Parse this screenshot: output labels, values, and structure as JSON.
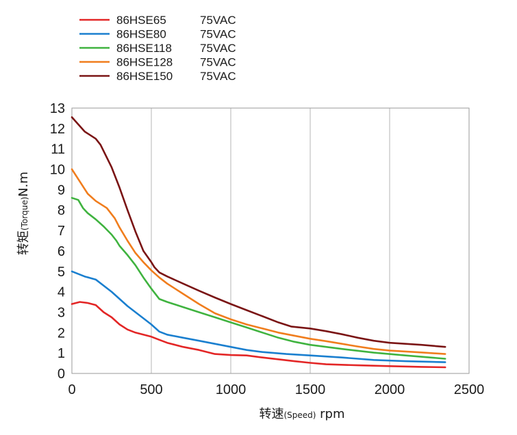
{
  "chart_data": {
    "type": "line",
    "xlabel": {
      "main": "转速",
      "small": "(Speed)",
      "unit": " rpm"
    },
    "ylabel": {
      "main": "转矩",
      "small": "(Torque)",
      "unit": "N.m"
    },
    "xlim": [
      0,
      2500
    ],
    "ylim": [
      0,
      13
    ],
    "xticks": [
      0,
      500,
      1000,
      1500,
      2000,
      2500
    ],
    "yticks": [
      0,
      1,
      2,
      3,
      4,
      5,
      6,
      7,
      8,
      9,
      10,
      11,
      12,
      13
    ],
    "grid": "vertical",
    "legend_position": "top-left",
    "series": [
      {
        "name": "86HSE65",
        "voltage": "75VAC",
        "color": "#e32626",
        "points": [
          [
            0,
            3.4
          ],
          [
            50,
            3.5
          ],
          [
            100,
            3.45
          ],
          [
            150,
            3.35
          ],
          [
            200,
            3.0
          ],
          [
            250,
            2.75
          ],
          [
            300,
            2.4
          ],
          [
            350,
            2.15
          ],
          [
            400,
            2.0
          ],
          [
            500,
            1.8
          ],
          [
            550,
            1.65
          ],
          [
            600,
            1.5
          ],
          [
            700,
            1.3
          ],
          [
            800,
            1.15
          ],
          [
            900,
            0.95
          ],
          [
            1000,
            0.9
          ],
          [
            1100,
            0.88
          ],
          [
            1200,
            0.78
          ],
          [
            1400,
            0.6
          ],
          [
            1500,
            0.52
          ],
          [
            1600,
            0.45
          ],
          [
            1800,
            0.4
          ],
          [
            2000,
            0.36
          ],
          [
            2200,
            0.32
          ],
          [
            2350,
            0.3
          ]
        ]
      },
      {
        "name": "86HSE80",
        "voltage": "75VAC",
        "color": "#1a7fcf",
        "points": [
          [
            0,
            5.0
          ],
          [
            80,
            4.75
          ],
          [
            150,
            4.6
          ],
          [
            250,
            4.0
          ],
          [
            350,
            3.3
          ],
          [
            450,
            2.7
          ],
          [
            500,
            2.4
          ],
          [
            550,
            2.05
          ],
          [
            600,
            1.9
          ],
          [
            700,
            1.75
          ],
          [
            800,
            1.6
          ],
          [
            900,
            1.45
          ],
          [
            1000,
            1.3
          ],
          [
            1100,
            1.15
          ],
          [
            1200,
            1.05
          ],
          [
            1350,
            0.95
          ],
          [
            1500,
            0.88
          ],
          [
            1700,
            0.78
          ],
          [
            1900,
            0.66
          ],
          [
            2100,
            0.6
          ],
          [
            2350,
            0.55
          ]
        ]
      },
      {
        "name": "86HSE118",
        "voltage": "75VAC",
        "color": "#3fb33f",
        "points": [
          [
            0,
            8.6
          ],
          [
            40,
            8.5
          ],
          [
            70,
            8.1
          ],
          [
            100,
            7.85
          ],
          [
            150,
            7.55
          ],
          [
            200,
            7.2
          ],
          [
            250,
            6.8
          ],
          [
            280,
            6.5
          ],
          [
            300,
            6.25
          ],
          [
            350,
            5.8
          ],
          [
            400,
            5.3
          ],
          [
            450,
            4.7
          ],
          [
            500,
            4.15
          ],
          [
            550,
            3.65
          ],
          [
            600,
            3.5
          ],
          [
            700,
            3.25
          ],
          [
            800,
            3.0
          ],
          [
            900,
            2.75
          ],
          [
            1000,
            2.5
          ],
          [
            1100,
            2.25
          ],
          [
            1200,
            2.0
          ],
          [
            1300,
            1.75
          ],
          [
            1400,
            1.55
          ],
          [
            1500,
            1.4
          ],
          [
            1700,
            1.2
          ],
          [
            1900,
            1.02
          ],
          [
            2100,
            0.88
          ],
          [
            2350,
            0.72
          ]
        ]
      },
      {
        "name": "86HSE128",
        "voltage": "75VAC",
        "color": "#f07d1d",
        "points": [
          [
            0,
            10.0
          ],
          [
            50,
            9.4
          ],
          [
            100,
            8.8
          ],
          [
            150,
            8.45
          ],
          [
            220,
            8.1
          ],
          [
            270,
            7.6
          ],
          [
            300,
            7.15
          ],
          [
            350,
            6.5
          ],
          [
            400,
            5.9
          ],
          [
            450,
            5.45
          ],
          [
            500,
            5.05
          ],
          [
            550,
            4.7
          ],
          [
            600,
            4.4
          ],
          [
            700,
            3.9
          ],
          [
            800,
            3.4
          ],
          [
            900,
            2.95
          ],
          [
            1000,
            2.65
          ],
          [
            1100,
            2.4
          ],
          [
            1200,
            2.2
          ],
          [
            1300,
            2.0
          ],
          [
            1400,
            1.85
          ],
          [
            1500,
            1.7
          ],
          [
            1600,
            1.58
          ],
          [
            1700,
            1.45
          ],
          [
            1800,
            1.32
          ],
          [
            1900,
            1.2
          ],
          [
            2000,
            1.12
          ],
          [
            2200,
            1.03
          ],
          [
            2350,
            0.95
          ]
        ]
      },
      {
        "name": "86HSE150",
        "voltage": "75VAC",
        "color": "#7a1414",
        "points": [
          [
            0,
            12.55
          ],
          [
            80,
            11.85
          ],
          [
            150,
            11.5
          ],
          [
            180,
            11.2
          ],
          [
            250,
            10.1
          ],
          [
            300,
            9.1
          ],
          [
            350,
            8.0
          ],
          [
            400,
            6.95
          ],
          [
            450,
            6.0
          ],
          [
            500,
            5.45
          ],
          [
            520,
            5.2
          ],
          [
            550,
            4.95
          ],
          [
            600,
            4.75
          ],
          [
            700,
            4.4
          ],
          [
            800,
            4.05
          ],
          [
            900,
            3.72
          ],
          [
            1000,
            3.4
          ],
          [
            1100,
            3.1
          ],
          [
            1200,
            2.8
          ],
          [
            1300,
            2.5
          ],
          [
            1380,
            2.3
          ],
          [
            1500,
            2.2
          ],
          [
            1600,
            2.07
          ],
          [
            1700,
            1.92
          ],
          [
            1800,
            1.75
          ],
          [
            1900,
            1.6
          ],
          [
            2000,
            1.5
          ],
          [
            2200,
            1.4
          ],
          [
            2350,
            1.3
          ]
        ]
      }
    ]
  }
}
